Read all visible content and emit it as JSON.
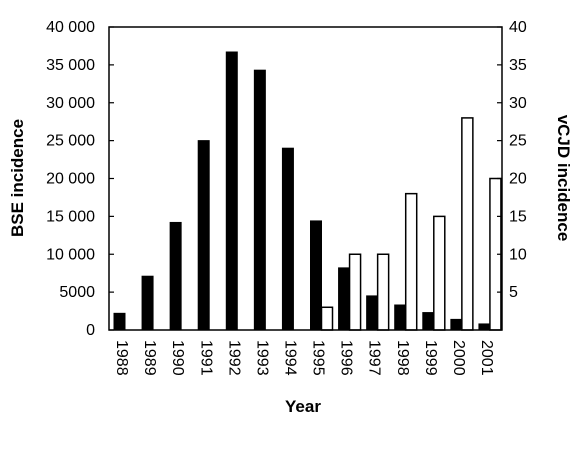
{
  "chart_data": {
    "type": "bar",
    "title": "",
    "xlabel": "Year",
    "ylabel_left": "BSE incidence",
    "ylabel_right": "vCJD incidence",
    "categories": [
      "1988",
      "1989",
      "1990",
      "1991",
      "1992",
      "1993",
      "1994",
      "1995",
      "1996",
      "1997",
      "1998",
      "1999",
      "2000",
      "2001"
    ],
    "series": [
      {
        "name": "BSE incidence",
        "axis": "left",
        "color": "#000000",
        "values": [
          2200,
          7100,
          14200,
          25000,
          36700,
          34300,
          24000,
          14400,
          8200,
          4500,
          3300,
          2300,
          1400,
          800
        ]
      },
      {
        "name": "vCJD incidence",
        "axis": "right",
        "color": "#ffffff",
        "values": [
          0,
          0,
          0,
          0,
          0,
          0,
          0,
          3,
          10,
          10,
          18,
          15,
          28,
          20
        ]
      }
    ],
    "ylim_left": [
      0,
      40000
    ],
    "yticks_left": [
      "0",
      "5000",
      "10 000",
      "15 000",
      "20 000",
      "25 000",
      "30 000",
      "35 000",
      "40 000"
    ],
    "ylim_right": [
      0,
      40
    ],
    "yticks_right": [
      "5",
      "10",
      "15",
      "20",
      "25",
      "30",
      "35",
      "40"
    ],
    "grid": false,
    "legend": "none"
  }
}
